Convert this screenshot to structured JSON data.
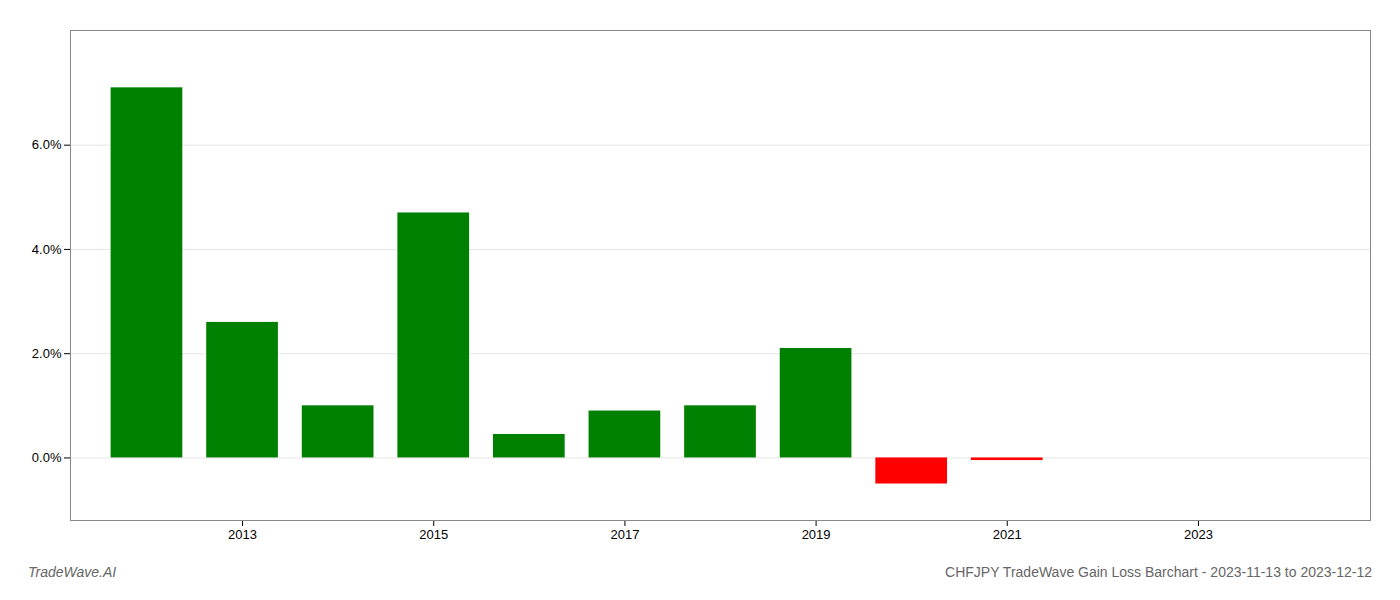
{
  "chart_data": {
    "type": "bar",
    "title": "CHFJPY TradeWave Gain Loss Barchart - 2023-11-13 to 2023-12-12",
    "annotations": [
      "TradeWave.AI"
    ],
    "x": [
      2012,
      2013,
      2014,
      2015,
      2016,
      2017,
      2018,
      2019,
      2020,
      2021,
      2022
    ],
    "values": [
      0.071,
      0.026,
      0.01,
      0.047,
      0.0045,
      0.009,
      0.01,
      0.021,
      -0.005,
      -0.0005,
      0.0
    ],
    "colors": [
      "#008000",
      "#008000",
      "#008000",
      "#008000",
      "#008000",
      "#008000",
      "#008000",
      "#008000",
      "#ff0000",
      "#ff0000",
      "#ff0000"
    ],
    "xlim": [
      2011.2,
      2024.8
    ],
    "xticks": [
      2013,
      2015,
      2017,
      2019,
      2021,
      2023
    ],
    "ylim": [
      -0.012,
      0.082
    ],
    "yticks": [
      {
        "value": 0.0,
        "label": "0.0%"
      },
      {
        "value": 0.02,
        "label": "2.0%"
      },
      {
        "value": 0.04,
        "label": "4.0%"
      },
      {
        "value": 0.06,
        "label": "6.0%"
      }
    ],
    "grid": true
  }
}
